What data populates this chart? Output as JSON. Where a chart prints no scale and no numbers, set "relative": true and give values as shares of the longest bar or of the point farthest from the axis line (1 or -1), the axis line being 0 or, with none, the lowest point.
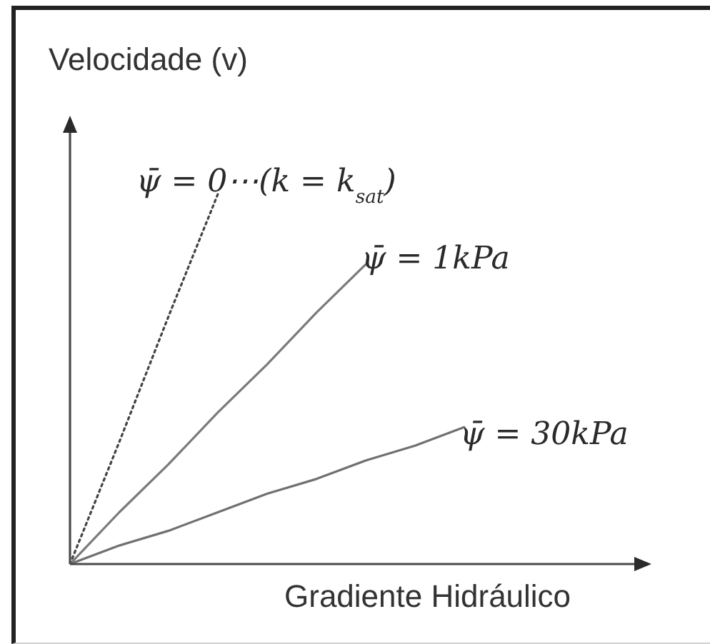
{
  "chart_data": {
    "type": "line",
    "relative": true,
    "xlabel": "Gradiente Hidráulico",
    "ylabel": "Velocidade (v)",
    "marker": "none",
    "categories": [
      null,
      null,
      null,
      null,
      null,
      null,
      null,
      null,
      null
    ],
    "series": [
      {
        "name": "ψ̄ = 0⋯(k = k$_{sat}$)",
        "color": "#444444",
        "line_style": "dotted",
        "values": [
          0,
          0.33,
          0.67,
          1,
          null,
          null,
          null,
          null,
          null
        ]
      },
      {
        "name": "ψ̄ = 1kPa",
        "color": "#7a7a7a",
        "line_style": "solid",
        "values": [
          0,
          0.14,
          0.27,
          0.41,
          0.54,
          0.68,
          0.81,
          null,
          null
        ]
      },
      {
        "name": "ψ̄ = 30kPa",
        "color": "#707070",
        "line_style": "solid",
        "values": [
          0,
          0.05,
          0.09,
          0.14,
          0.19,
          0.23,
          0.28,
          0.32,
          0.37
        ]
      }
    ]
  }
}
